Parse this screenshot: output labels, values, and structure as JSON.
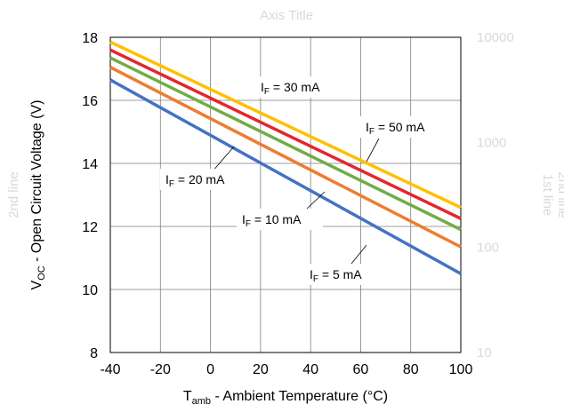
{
  "chart_data": {
    "type": "line",
    "title": "Axis Title",
    "xlabel_main": "T",
    "xlabel_sub": "amb",
    "xlabel_rest": " - Ambient Temperature (°C)",
    "ylabel_main": "V",
    "ylabel_sub": "OC",
    "ylabel_rest": " - Open Circuit Voltage (V)",
    "ylabel_ghost": "2nd line",
    "y2label_line1": "1st line",
    "y2label_line2": "2nd line",
    "xlim": [
      -40,
      100
    ],
    "ylim": [
      8,
      18
    ],
    "xticks": [
      "-40",
      "-20",
      "0",
      "20",
      "40",
      "60",
      "80",
      "100"
    ],
    "yticks": [
      "8",
      "10",
      "12",
      "14",
      "16",
      "18"
    ],
    "y2ticks": [
      "10",
      "100",
      "1000",
      "10000"
    ],
    "grid": true,
    "series": [
      {
        "name": "IF = 5 mA",
        "label_main": "I",
        "label_sub": "F",
        "label_rest": " = 5 mA",
        "color": "#4472c4",
        "x": [
          -40,
          100
        ],
        "y": [
          16.65,
          10.5
        ]
      },
      {
        "name": "IF = 10 mA",
        "label_main": "I",
        "label_sub": "F",
        "label_rest": " = 10 mA",
        "color": "#ed7d31",
        "x": [
          -40,
          100
        ],
        "y": [
          17.05,
          11.35
        ]
      },
      {
        "name": "IF = 20 mA",
        "label_main": "I",
        "label_sub": "F",
        "label_rest": " = 20 mA",
        "color": "#70ad47",
        "x": [
          -40,
          100
        ],
        "y": [
          17.35,
          11.9
        ]
      },
      {
        "name": "IF = 30 mA",
        "label_main": "I",
        "label_sub": "F",
        "label_rest": " = 30 mA",
        "color": "#e3262f",
        "x": [
          -40,
          100
        ],
        "y": [
          17.6,
          12.25
        ]
      },
      {
        "name": "IF = 50 mA",
        "label_main": "I",
        "label_sub": "F",
        "label_rest": " = 50 mA",
        "color": "#ffc000",
        "x": [
          -40,
          100
        ],
        "y": [
          17.85,
          12.6
        ]
      }
    ]
  }
}
